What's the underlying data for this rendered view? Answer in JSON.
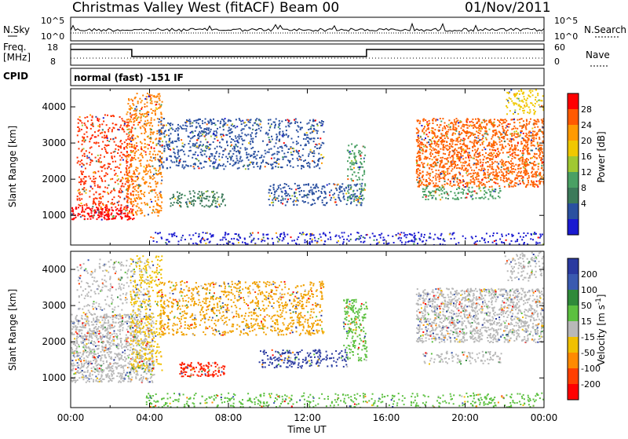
{
  "header": {
    "title": "Christmas Valley West (fitACF)",
    "beam": "Beam 00",
    "date": "01/Nov/2011"
  },
  "panels": {
    "noise": {
      "label": "N.Sky",
      "left_ticks": [
        "10^5",
        "10^0"
      ],
      "right_ticks": [
        "10^5",
        "10^0"
      ],
      "right_label": "N.Search"
    },
    "freq": {
      "label_line1": "Freq.",
      "label_line2": "[MHz]",
      "left_ticks": [
        "18",
        "8"
      ],
      "right_ticks": [
        "60",
        "0"
      ],
      "right_label": "Nave"
    },
    "cpid": {
      "label": "CPID",
      "text": "normal (fast) -151 IF"
    }
  },
  "chart_data": [
    {
      "type": "heatmap",
      "name": "power",
      "ylabel": "Slant Range [km]",
      "yticks": [
        "1000",
        "2000",
        "3000",
        "4000"
      ],
      "ylim": [
        180,
        4500
      ],
      "xlim_hours": [
        0,
        24
      ],
      "colorbar_label": "Power [dB]",
      "colorbar_ticks": [
        "28",
        "24",
        "20",
        "16",
        "12",
        "8",
        "4"
      ],
      "colorbar_colors": [
        "#ff0000",
        "#ff5a00",
        "#ff9a00",
        "#f0c800",
        "#a0c832",
        "#4aa064",
        "#3c7a5a",
        "#2a50a0",
        "#1a1ad0"
      ],
      "regions": [
        {
          "t0": 0.0,
          "t1": 3.2,
          "r0": 900,
          "r1": 1250,
          "color": "#ff0000",
          "density": 0.9
        },
        {
          "t0": 0.3,
          "t1": 3.2,
          "r0": 1250,
          "r1": 3800,
          "color": "#ff3000",
          "density": 0.35
        },
        {
          "t0": 2.8,
          "t1": 4.6,
          "r0": 1000,
          "r1": 4400,
          "color": "#ff8000",
          "density": 0.45
        },
        {
          "t0": 4.4,
          "t1": 12.8,
          "r0": 2300,
          "r1": 3700,
          "color": "#2a50a0",
          "density": 0.4
        },
        {
          "t0": 5.0,
          "t1": 7.8,
          "r0": 1250,
          "r1": 1700,
          "color": "#3c7a5a",
          "density": 0.5
        },
        {
          "t0": 10.0,
          "t1": 14.8,
          "r0": 1300,
          "r1": 1900,
          "color": "#2a50a0",
          "density": 0.45
        },
        {
          "t0": 14.0,
          "t1": 14.9,
          "r0": 1400,
          "r1": 3000,
          "color": "#4aa064",
          "density": 0.4
        },
        {
          "t0": 17.5,
          "t1": 24.0,
          "r0": 1800,
          "r1": 3700,
          "color": "#ff6000",
          "density": 0.7
        },
        {
          "t0": 17.8,
          "t1": 21.8,
          "r0": 1450,
          "r1": 1800,
          "color": "#4aa064",
          "density": 0.5
        },
        {
          "t0": 22.0,
          "t1": 24.0,
          "r0": 3800,
          "r1": 4500,
          "color": "#f0c800",
          "density": 0.4
        },
        {
          "t0": 4.0,
          "t1": 24.0,
          "r0": 200,
          "r1": 550,
          "color": "#1a1ad0",
          "density": 0.3
        }
      ]
    },
    {
      "type": "heatmap",
      "name": "velocity",
      "ylabel": "Slant Range [km]",
      "yticks": [
        "1000",
        "2000",
        "3000",
        "4000"
      ],
      "ylim": [
        180,
        4500
      ],
      "xlim_hours": [
        0,
        24
      ],
      "xticks": [
        "00:00",
        "04:00",
        "08:00",
        "12:00",
        "16:00",
        "20:00",
        "00:00"
      ],
      "xlabel": "Time UT",
      "colorbar_label": "Velocity [m s^-1]",
      "colorbar_ticks": [
        "200",
        "100",
        "50",
        "15",
        "-15",
        "-50",
        "-100",
        "-200"
      ],
      "colorbar_colors": [
        "#2a3aa0",
        "#3a5ab0",
        "#2f8a3a",
        "#5cc040",
        "#b8b8b8",
        "#f0c000",
        "#ff8a00",
        "#ff4000",
        "#ff0000"
      ],
      "regions": [
        {
          "t0": 0.0,
          "t1": 4.2,
          "r0": 900,
          "r1": 2800,
          "color": "#b8b8b8",
          "density": 0.75
        },
        {
          "t0": 0.3,
          "t1": 4.0,
          "r0": 2800,
          "r1": 4300,
          "color": "#b8b8b8",
          "density": 0.25
        },
        {
          "t0": 3.0,
          "t1": 4.6,
          "r0": 1200,
          "r1": 4400,
          "color": "#f0c000",
          "density": 0.35
        },
        {
          "t0": 4.5,
          "t1": 12.8,
          "r0": 2200,
          "r1": 3700,
          "color": "#f0a000",
          "density": 0.4
        },
        {
          "t0": 5.5,
          "t1": 7.8,
          "r0": 1050,
          "r1": 1450,
          "color": "#ff2000",
          "density": 0.75
        },
        {
          "t0": 9.5,
          "t1": 14.0,
          "r0": 1300,
          "r1": 1800,
          "color": "#2a3aa0",
          "density": 0.45
        },
        {
          "t0": 13.8,
          "t1": 15.0,
          "r0": 1500,
          "r1": 3200,
          "color": "#5cc040",
          "density": 0.5
        },
        {
          "t0": 17.5,
          "t1": 24.0,
          "r0": 2000,
          "r1": 3500,
          "color": "#b8b8b8",
          "density": 0.7
        },
        {
          "t0": 17.8,
          "t1": 21.8,
          "r0": 1400,
          "r1": 1750,
          "color": "#b8b8b8",
          "density": 0.4
        },
        {
          "t0": 22.0,
          "t1": 24.0,
          "r0": 3700,
          "r1": 4500,
          "color": "#b8b8b8",
          "density": 0.4
        },
        {
          "t0": 3.8,
          "t1": 24.0,
          "r0": 200,
          "r1": 600,
          "color": "#5cc040",
          "density": 0.3
        }
      ]
    }
  ]
}
